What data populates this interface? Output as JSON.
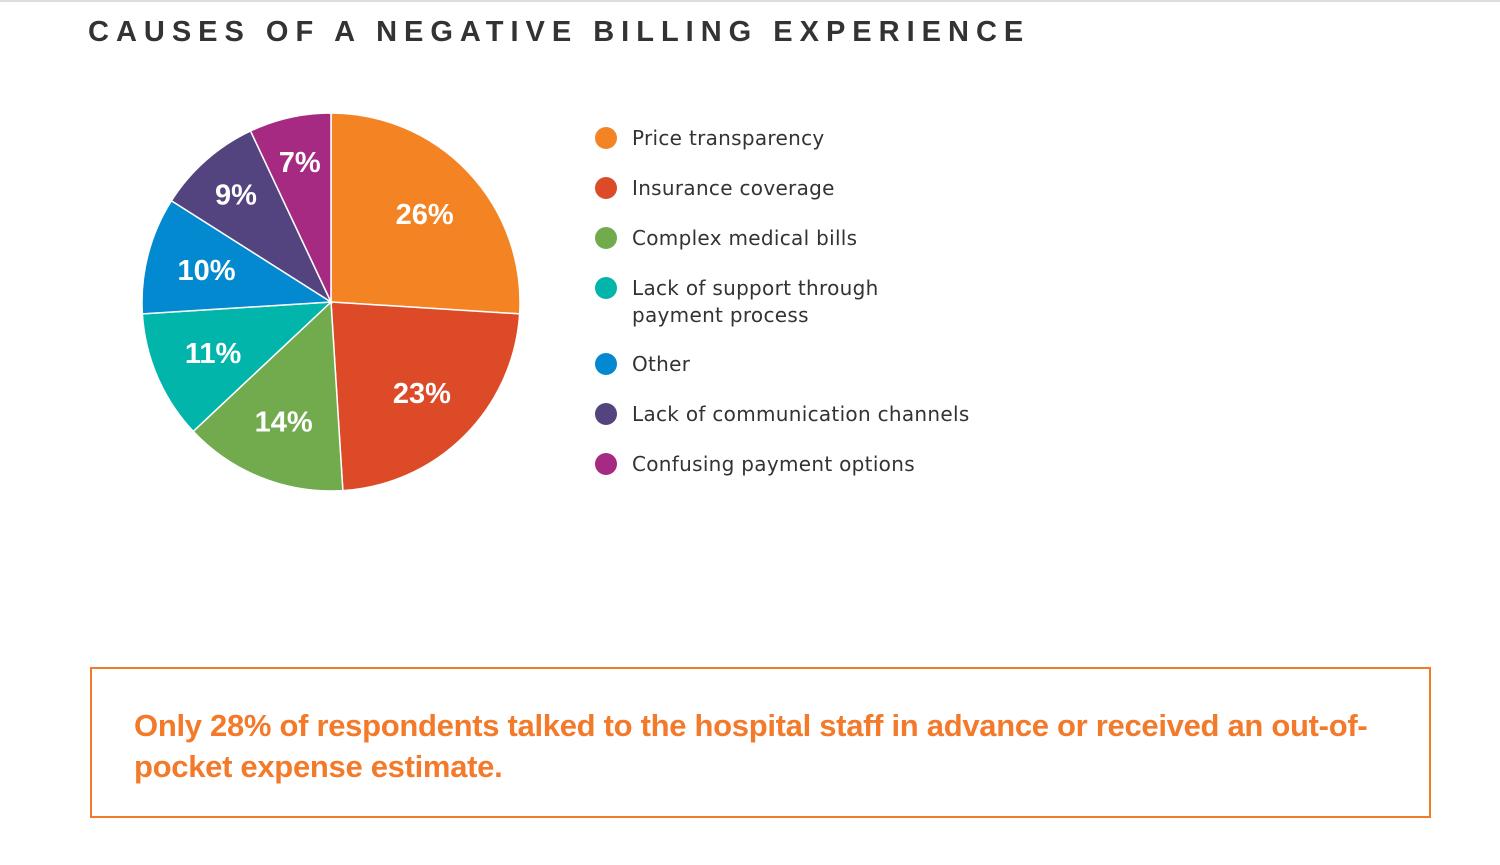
{
  "chart_data": {
    "type": "pie",
    "title": "CAUSES OF A NEGATIVE BILLING EXPERIENCE",
    "legend_position": "right",
    "slices": [
      {
        "label": "Price transparency",
        "value": 26,
        "display": "26%",
        "color": "#f48423"
      },
      {
        "label": "Insurance coverage",
        "value": 23,
        "display": "23%",
        "color": "#dd4a28"
      },
      {
        "label": "Complex medical bills",
        "value": 14,
        "display": "14%",
        "color": "#72aa4e"
      },
      {
        "label": "Lack of support through payment process",
        "value": 11,
        "display": "11%",
        "color": "#02b5aa"
      },
      {
        "label": "Other",
        "value": 10,
        "display": "10%",
        "color": "#0289cf"
      },
      {
        "label": "Lack of communication channels",
        "value": 9,
        "display": "9%",
        "color": "#53437f"
      },
      {
        "label": "Confusing payment options",
        "value": 7,
        "display": "7%",
        "color": "#a62a81"
      }
    ]
  },
  "legend_lines": [
    [
      "Price transparency"
    ],
    [
      "Insurance coverage"
    ],
    [
      "Complex medical bills"
    ],
    [
      "Lack of support through",
      "payment process"
    ],
    [
      "Other"
    ],
    [
      "Lack of communication channels"
    ],
    [
      "Confusing payment options"
    ]
  ],
  "callout": {
    "text": "Only 28% of respondents talked to the hospital staff in advance or received an out-of-pocket expense estimate.",
    "color": "#f37a2a"
  }
}
